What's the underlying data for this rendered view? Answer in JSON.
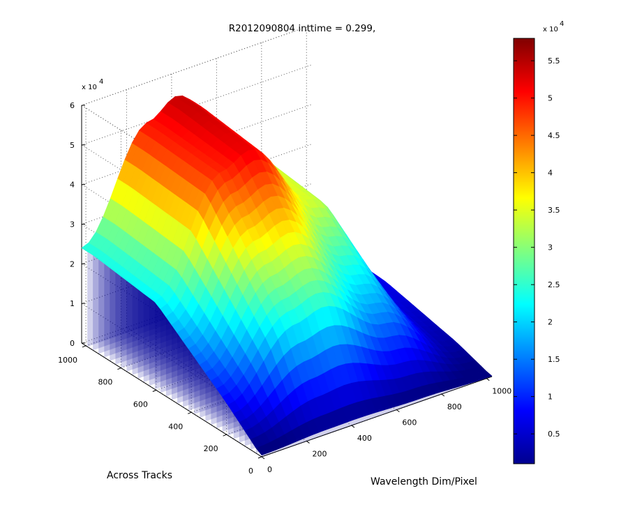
{
  "chart_data": {
    "type": "surface3d",
    "title": "R2012090804 inttime = 0.299,",
    "xlabel": "Wavelength Dim/Pixel",
    "ylabel": "Across Tracks",
    "zlabel": "",
    "x_range": [
      0,
      1024
    ],
    "y_range": [
      0,
      1024
    ],
    "z_range": [
      0,
      60000
    ],
    "x_ticks": [
      "0",
      "200",
      "400",
      "600",
      "800",
      "1000"
    ],
    "y_ticks": [
      "0",
      "200",
      "400",
      "600",
      "800",
      "1000"
    ],
    "z_ticks": [
      "0",
      "1",
      "2",
      "3",
      "4",
      "5",
      "6"
    ],
    "z_exponent_base": "x 10",
    "z_exponent_power": "4",
    "grid": true,
    "colormap": "jet",
    "colorbar": {
      "ticks": [
        "0.5",
        "1",
        "1.5",
        "2",
        "2.5",
        "3",
        "3.5",
        "4",
        "4.5",
        "5",
        "5.5"
      ],
      "exponent_base": "x 10",
      "exponent_power": "4",
      "range": [
        1000,
        58000
      ]
    },
    "series": [
      {
        "y": 950,
        "values": [
          {
            "x": 0,
            "z": 24000
          },
          {
            "x": 300,
            "z": 50000
          },
          {
            "x": 420,
            "z": 54000
          },
          {
            "x": 700,
            "z": 36000
          },
          {
            "x": 1000,
            "z": 8000
          }
        ]
      },
      {
        "y": 600,
        "values": [
          {
            "x": 0,
            "z": 22000
          },
          {
            "x": 300,
            "z": 49000
          },
          {
            "x": 420,
            "z": 52000
          },
          {
            "x": 700,
            "z": 34000
          },
          {
            "x": 1000,
            "z": 7000
          }
        ]
      },
      {
        "y": 200,
        "values": [
          {
            "x": 0,
            "z": 8000
          },
          {
            "x": 300,
            "z": 23000
          },
          {
            "x": 420,
            "z": 25000
          },
          {
            "x": 700,
            "z": 15000
          },
          {
            "x": 1000,
            "z": 3000
          }
        ]
      }
    ]
  }
}
